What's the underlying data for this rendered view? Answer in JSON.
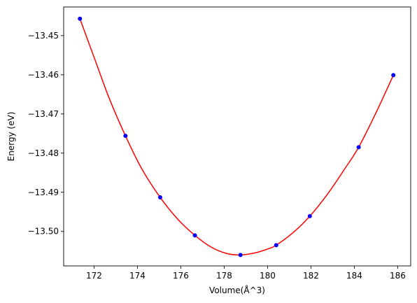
{
  "chart_data": {
    "type": "line",
    "xlabel": "Volume(Å^3)",
    "ylabel": "Energy (eV)",
    "xlim": [
      170.6,
      186.6
    ],
    "ylim": [
      -13.5088,
      -13.4427
    ],
    "x_ticks": [
      172,
      174,
      176,
      178,
      180,
      182,
      184,
      186
    ],
    "x_tick_labels": [
      "172",
      "174",
      "176",
      "178",
      "180",
      "182",
      "184",
      "186"
    ],
    "y_ticks": [
      -13.45,
      -13.46,
      -13.47,
      -13.48,
      -13.49,
      -13.5
    ],
    "y_tick_labels": [
      "−13.45",
      "−13.46",
      "−13.47",
      "−13.48",
      "−13.49",
      "−13.50"
    ],
    "grid": false,
    "series": [
      {
        "kind": "scatter",
        "color": "#0000ff",
        "x": [
          171.35,
          173.45,
          175.05,
          176.65,
          178.75,
          180.4,
          181.95,
          184.2,
          185.8
        ],
        "y": [
          -13.4457,
          -13.4756,
          -13.4913,
          -13.501,
          -13.506,
          -13.5035,
          -13.4961,
          -13.4785,
          -13.4601
        ]
      },
      {
        "kind": "fit-curve",
        "color": "#ff0000",
        "x": [
          171.35,
          172.0,
          172.7,
          173.45,
          174.2,
          175.05,
          175.85,
          176.65,
          177.4,
          178.1,
          178.75,
          179.4,
          180.0,
          180.4,
          181.2,
          181.95,
          182.8,
          183.5,
          184.2,
          185.0,
          185.8
        ],
        "y": [
          -13.4457,
          -13.4555,
          -13.466,
          -13.4756,
          -13.484,
          -13.4913,
          -13.4968,
          -13.501,
          -13.504,
          -13.5056,
          -13.506,
          -13.5055,
          -13.5045,
          -13.5035,
          -13.5002,
          -13.4961,
          -13.4902,
          -13.4845,
          -13.4785,
          -13.4697,
          -13.4601
        ]
      }
    ]
  }
}
